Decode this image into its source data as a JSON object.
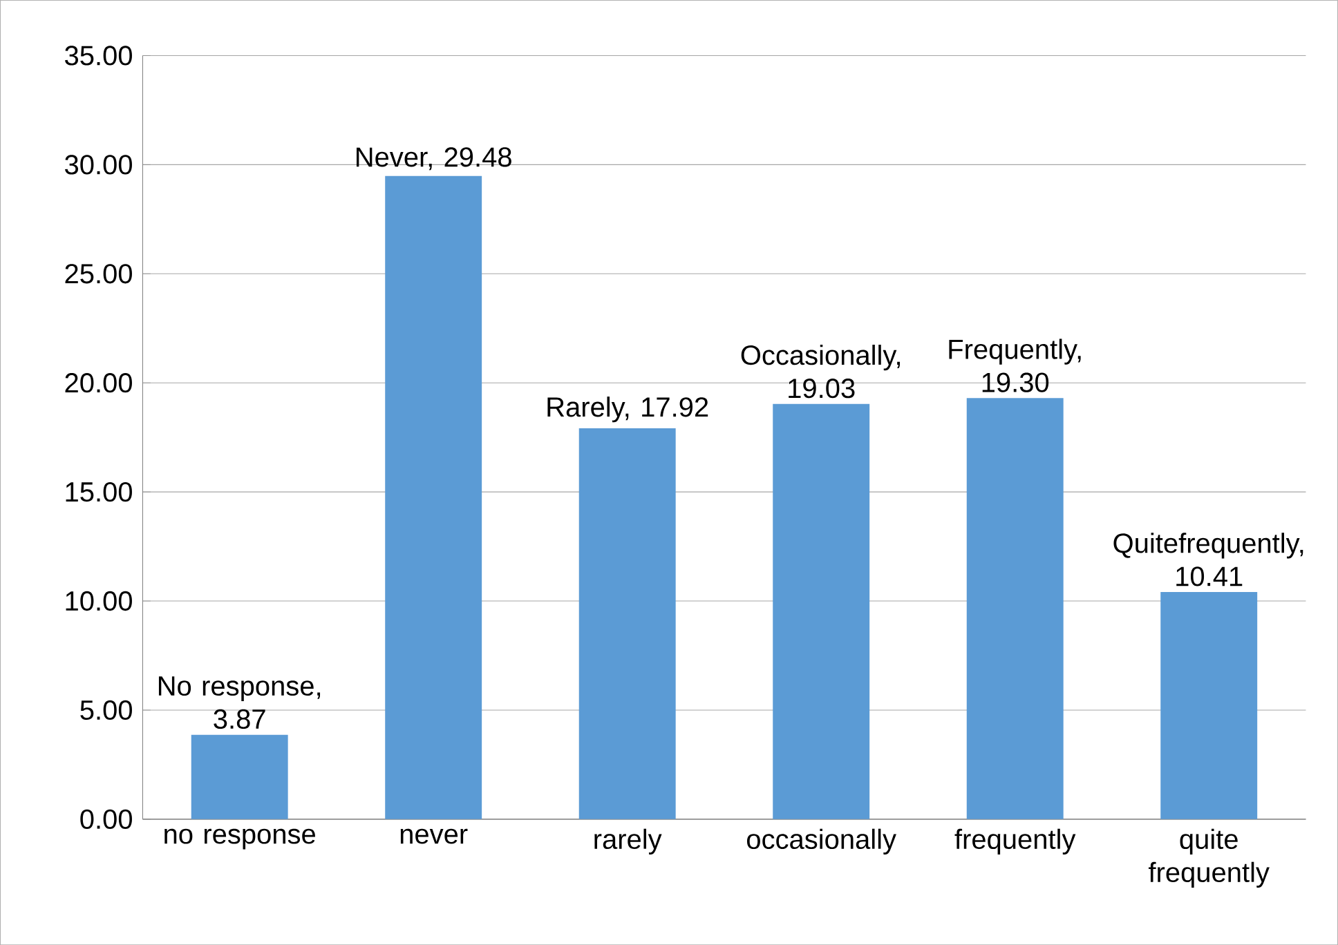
{
  "chart_data": {
    "type": "bar",
    "categories": [
      "no response",
      "never",
      "rarely",
      "occasionally",
      "frequently",
      "quite frequently"
    ],
    "values": [
      3.87,
      29.48,
      17.92,
      19.03,
      19.3,
      10.41
    ],
    "value_labels": [
      "No response, 3.87",
      "Never, 29.48",
      "Rarely, 17.92",
      "Occasionally, 19.03",
      "Frequently, 19.30",
      "Quitefrequently, 10.41"
    ],
    "color": "#5b9bd5",
    "ylim": [
      0,
      35
    ],
    "yticks": [
      {
        "value": 0,
        "label": "0.00"
      },
      {
        "value": 5,
        "label": "5.00"
      },
      {
        "value": 10,
        "label": "10.00"
      },
      {
        "value": 15,
        "label": "15.00"
      },
      {
        "value": 20,
        "label": "20.00"
      },
      {
        "value": 25,
        "label": "25.00"
      },
      {
        "value": 30,
        "label": "30.00"
      },
      {
        "value": 35,
        "label": "35.00"
      }
    ],
    "grid": "y"
  }
}
